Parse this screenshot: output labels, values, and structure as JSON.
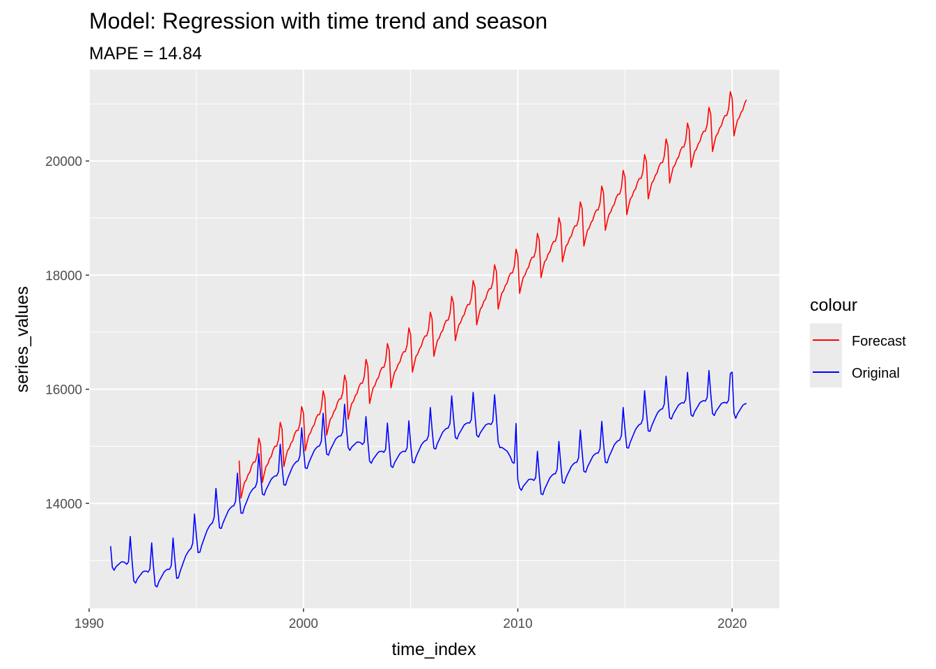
{
  "chart_data": {
    "type": "line",
    "title": "Model:  Regression with time trend and season",
    "subtitle": "MAPE = 14.84",
    "xlabel": "time_index",
    "ylabel": "series_values",
    "xlim": [
      1990.0,
      2022.2
    ],
    "ylim": [
      12160,
      21600
    ],
    "x_ticks": [
      1990,
      2000,
      2010,
      2020
    ],
    "x_tick_labels": [
      "1990",
      "2000",
      "2010",
      "2020"
    ],
    "x_minor_ticks": [
      1995,
      2005,
      2015
    ],
    "y_ticks": [
      14000,
      16000,
      18000,
      20000
    ],
    "y_tick_labels": [
      "14000",
      "16000",
      "18000",
      "20000"
    ],
    "y_minor_ticks": [
      13000,
      15000,
      17000,
      19000,
      21000
    ],
    "grid": true,
    "legend": {
      "title": "colour",
      "position": "right"
    },
    "series": [
      {
        "name": "Forecast",
        "color": "#ff0000",
        "start": 1997.0,
        "end": 2020.667,
        "model": {
          "value_at_start": 14750,
          "monthly_trend": 23.0,
          "seasonal_offsets": [
            0,
            -680,
            -560,
            -450,
            -430,
            -360,
            -340,
            -250,
            -210,
            -230,
            -140,
            140
          ]
        }
      },
      {
        "name": "Original",
        "color": "#0000ff",
        "start": 1991.0,
        "end": 2020.667,
        "annual_levels": [
          {
            "year": 1991,
            "level": 13100
          },
          {
            "year": 1992,
            "level": 12850
          },
          {
            "year": 1993,
            "level": 12750
          },
          {
            "year": 1994,
            "level": 12850
          },
          {
            "year": 1995,
            "level": 13300
          },
          {
            "year": 1996,
            "level": 13750
          },
          {
            "year": 1997,
            "level": 14000
          },
          {
            "year": 1998,
            "level": 14350
          },
          {
            "year": 1999,
            "level": 14500
          },
          {
            "year": 2000,
            "level": 14800
          },
          {
            "year": 2001,
            "level": 15050
          },
          {
            "year": 2002,
            "level": 15200
          },
          {
            "year": 2003,
            "level": 14950
          },
          {
            "year": 2004,
            "level": 14850
          },
          {
            "year": 2005,
            "level": 14900
          },
          {
            "year": 2006,
            "level": 15150
          },
          {
            "year": 2007,
            "level": 15350
          },
          {
            "year": 2008,
            "level": 15400
          },
          {
            "year": 2009,
            "level": 15350
          },
          {
            "year": 2010,
            "level": 14480
          },
          {
            "year": 2011,
            "level": 14350
          },
          {
            "year": 2012,
            "level": 14550
          },
          {
            "year": 2013,
            "level": 14750
          },
          {
            "year": 2014,
            "level": 14900
          },
          {
            "year": 2015,
            "level": 15150
          },
          {
            "year": 2016,
            "level": 15450
          },
          {
            "year": 2017,
            "level": 15700
          },
          {
            "year": 2018,
            "level": 15750
          },
          {
            "year": 2019,
            "level": 15780
          },
          {
            "year": 2020,
            "level": 15720
          }
        ],
        "seasonal_offsets": [
          150,
          -200,
          -230,
          -150,
          -100,
          -50,
          0,
          20,
          30,
          20,
          80,
          550
        ],
        "overrides": [
          {
            "year": 2009.917,
            "value": 15400
          },
          {
            "year": 2010.0,
            "value": 14420
          },
          {
            "year": 2020.0,
            "value": 16300
          },
          {
            "year": 2020.083,
            "value": 15580
          }
        ]
      }
    ]
  }
}
